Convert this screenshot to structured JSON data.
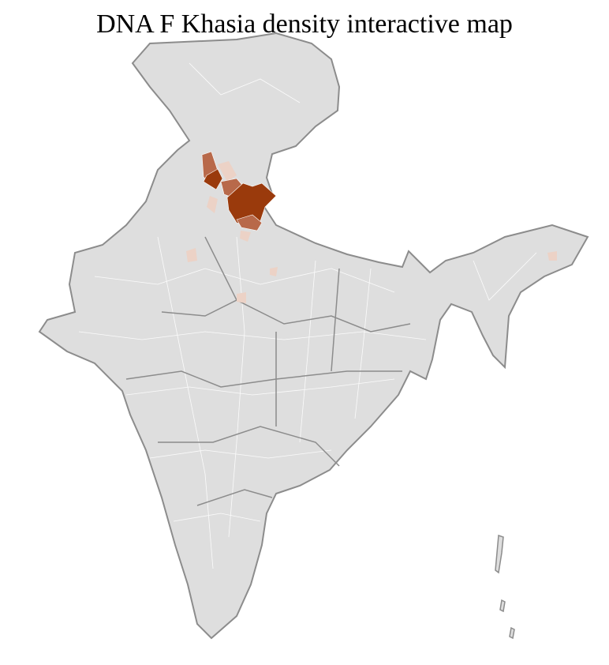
{
  "title": "DNA F Khasia density interactive map",
  "colors": {
    "base": "#dedede",
    "border": "#8c8c8c",
    "district_border": "#ffffff",
    "high": "#9a3a0c",
    "medium": "#b8694a",
    "low": "#ecd2c6"
  }
}
